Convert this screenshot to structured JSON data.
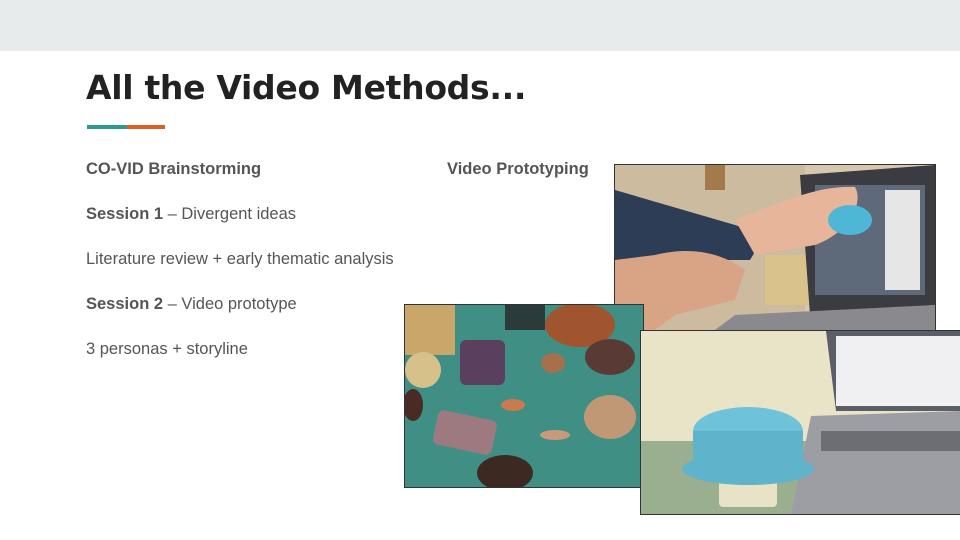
{
  "slide": {
    "title": "All the Video Methods...",
    "colors": {
      "teal": "#2e9a8f",
      "orange": "#d9621f",
      "topbar": "#e8ebec",
      "text": "#555555"
    }
  },
  "left_column": {
    "heading": "CO-VID Brainstorming",
    "session1_label": "Session 1",
    "session1_text": " – Divergent ideas",
    "lit_review": "Literature review + early thematic analysis",
    "session2_label": "Session 2",
    "session2_text": " – Video prototype",
    "personas": "3 personas +  storyline"
  },
  "right_column": {
    "heading": "Video Prototyping"
  },
  "images": [
    {
      "name": "photo-hands-laptop",
      "description_icon": "photo-icon"
    },
    {
      "name": "photo-clay-objects",
      "description_icon": "photo-icon"
    },
    {
      "name": "photo-blue-brush-prototype",
      "description_icon": "photo-icon"
    }
  ]
}
